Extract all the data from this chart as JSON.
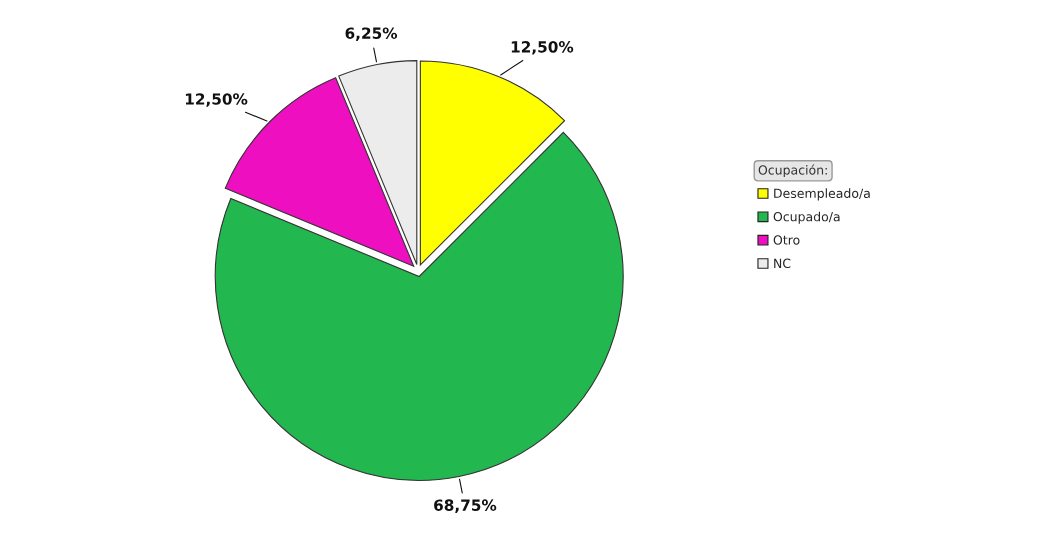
{
  "chart_data": {
    "type": "pie",
    "categories": [
      "Desempleado/a",
      "Ocupado/a",
      "Otro",
      "NC"
    ],
    "values": [
      12.5,
      68.75,
      12.5,
      6.25
    ],
    "value_labels": [
      "12,50%",
      "68,75%",
      "12,50%",
      "6,25%"
    ],
    "colors": [
      "#ffff00",
      "#22b84f",
      "#ee10c0",
      "#ececec"
    ],
    "legend_title": "Ocupación:",
    "legend": "right"
  }
}
